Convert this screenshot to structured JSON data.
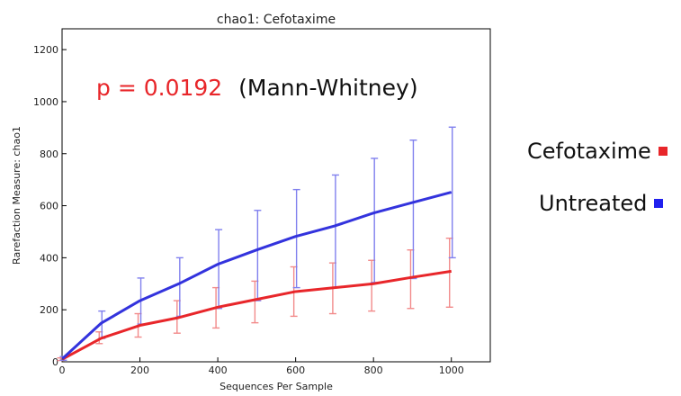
{
  "chart_data": {
    "type": "line",
    "title": "chao1: Cefotaxime",
    "xlabel": "Sequences Per Sample",
    "ylabel": "Rarefaction Measure: chao1",
    "xlim": [
      0,
      1100
    ],
    "ylim": [
      0,
      1280
    ],
    "x_ticks": [
      0,
      200,
      400,
      600,
      800,
      1000
    ],
    "y_ticks": [
      0,
      200,
      400,
      600,
      800,
      1000,
      1200
    ],
    "grid": false,
    "legend_position": "right",
    "annotation": {
      "stat_text": "p = 0.0192",
      "method_text": "(Mann-Whitney)"
    },
    "x": [
      1,
      100,
      200,
      300,
      400,
      500,
      600,
      700,
      800,
      900,
      1000
    ],
    "series": [
      {
        "name": "Cefotaxime",
        "color": "#e8262a",
        "error_color": "#f28a8a",
        "values": [
          10,
          90,
          140,
          170,
          210,
          240,
          270,
          285,
          300,
          325,
          348
        ],
        "lower": [
          5,
          70,
          95,
          110,
          130,
          150,
          175,
          185,
          195,
          205,
          210
        ],
        "upper": [
          15,
          115,
          185,
          235,
          285,
          310,
          365,
          380,
          390,
          430,
          475
        ]
      },
      {
        "name": "Untreated",
        "color": "#3333dd",
        "error_color": "#8080ee",
        "values": [
          12,
          148,
          235,
          300,
          375,
          430,
          482,
          522,
          572,
          612,
          652
        ],
        "lower": [
          6,
          90,
          145,
          175,
          205,
          235,
          285,
          285,
          305,
          320,
          400
        ],
        "upper": [
          20,
          195,
          322,
          400,
          508,
          582,
          662,
          718,
          782,
          852,
          902
        ]
      }
    ]
  }
}
